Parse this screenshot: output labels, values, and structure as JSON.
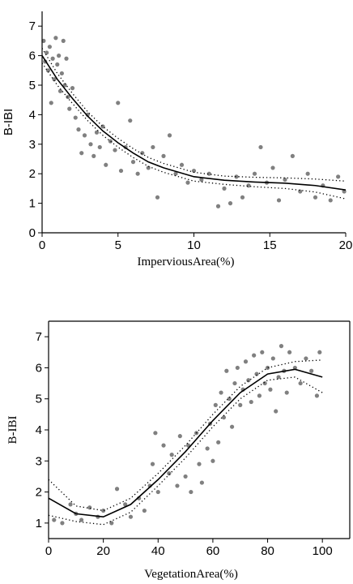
{
  "chart_data": [
    {
      "type": "scatter",
      "xlabel": "ImperviousArea(%)",
      "ylabel": "B-IBI",
      "xlim": [
        0,
        20
      ],
      "ylim": [
        0,
        7.5
      ],
      "xticks": [
        0,
        5,
        10,
        15,
        20
      ],
      "yticks": [
        0,
        1,
        2,
        3,
        4,
        5,
        6,
        7
      ],
      "frame": false,
      "series": [
        {
          "mode": "points",
          "color": "#808080",
          "x": [
            0.1,
            0.2,
            0.3,
            0.4,
            0.5,
            0.6,
            0.7,
            0.8,
            0.9,
            1.0,
            1.1,
            1.2,
            1.3,
            1.4,
            1.5,
            1.6,
            1.7,
            1.8,
            2.0,
            2.2,
            2.4,
            2.6,
            2.8,
            3.0,
            3.2,
            3.4,
            3.6,
            3.8,
            4.0,
            4.2,
            4.5,
            4.8,
            5.0,
            5.2,
            5.5,
            5.8,
            6.0,
            6.3,
            6.6,
            7.0,
            7.3,
            7.6,
            8.0,
            8.4,
            8.8,
            9.2,
            9.6,
            10.0,
            10.5,
            11.0,
            11.6,
            12.0,
            12.4,
            12.8,
            13.2,
            13.6,
            14.0,
            14.4,
            14.8,
            15.2,
            15.6,
            16.0,
            16.5,
            17.0,
            17.5,
            18.0,
            18.5,
            19.0,
            19.5,
            19.9
          ],
          "values": [
            6.5,
            5.8,
            6.1,
            5.5,
            6.3,
            4.4,
            5.9,
            5.2,
            6.6,
            5.7,
            6.0,
            4.8,
            5.4,
            6.5,
            5.0,
            5.9,
            4.6,
            4.2,
            4.9,
            3.9,
            3.5,
            2.7,
            3.3,
            4.0,
            3.0,
            2.6,
            3.4,
            2.9,
            3.6,
            2.3,
            3.1,
            2.8,
            4.4,
            2.1,
            2.9,
            3.8,
            2.4,
            2.0,
            2.7,
            2.2,
            2.9,
            1.2,
            2.6,
            3.3,
            2.0,
            2.3,
            1.7,
            2.1,
            1.8,
            2.0,
            0.9,
            1.5,
            1.0,
            1.9,
            1.2,
            1.6,
            2.0,
            2.9,
            1.7,
            2.2,
            1.1,
            1.8,
            2.6,
            1.4,
            2.0,
            1.2,
            1.6,
            1.1,
            1.9,
            1.4
          ]
        },
        {
          "mode": "line",
          "color": "#000000",
          "dash": "solid",
          "x": [
            0,
            1,
            2,
            3,
            4,
            5,
            6,
            7,
            8,
            10,
            12,
            14,
            16,
            18,
            20
          ],
          "values": [
            6.0,
            5.2,
            4.55,
            3.95,
            3.45,
            3.05,
            2.7,
            2.4,
            2.2,
            1.9,
            1.78,
            1.72,
            1.68,
            1.6,
            1.45
          ]
        },
        {
          "mode": "line",
          "color": "#000000",
          "dash": "dotted",
          "x": [
            0,
            1,
            2,
            3,
            4,
            5,
            6,
            7,
            8,
            10,
            12,
            14,
            16,
            18,
            20
          ],
          "values": [
            6.25,
            5.4,
            4.72,
            4.1,
            3.6,
            3.2,
            2.85,
            2.55,
            2.35,
            2.05,
            1.92,
            1.88,
            1.86,
            1.82,
            1.75
          ]
        },
        {
          "mode": "line",
          "color": "#000000",
          "dash": "dotted",
          "x": [
            0,
            1,
            2,
            3,
            4,
            5,
            6,
            7,
            8,
            10,
            12,
            14,
            16,
            18,
            20
          ],
          "values": [
            5.75,
            5.0,
            4.38,
            3.8,
            3.3,
            2.9,
            2.55,
            2.25,
            2.05,
            1.75,
            1.64,
            1.56,
            1.5,
            1.38,
            1.15
          ]
        }
      ]
    },
    {
      "type": "scatter",
      "xlabel": "VegetationArea(%)",
      "ylabel": "B-IBI",
      "xlim": [
        0,
        110
      ],
      "ylim": [
        0.5,
        7.5
      ],
      "xticks": [
        0,
        20,
        40,
        60,
        80,
        100
      ],
      "yticks": [
        1,
        2,
        3,
        4,
        5,
        6,
        7
      ],
      "frame": true,
      "series": [
        {
          "mode": "points",
          "color": "#808080",
          "x": [
            2,
            5,
            8,
            10,
            12,
            15,
            18,
            20,
            23,
            25,
            28,
            30,
            33,
            35,
            37,
            38,
            39,
            40,
            42,
            44,
            45,
            47,
            48,
            50,
            51,
            52,
            54,
            55,
            56,
            58,
            59,
            60,
            61,
            62,
            63,
            64,
            65,
            66,
            67,
            68,
            69,
            70,
            71,
            72,
            73,
            74,
            75,
            76,
            77,
            78,
            79,
            80,
            81,
            82,
            83,
            84,
            85,
            86,
            87,
            88,
            90,
            92,
            94,
            96,
            98,
            99
          ],
          "values": [
            1.1,
            1.0,
            1.6,
            1.3,
            1.1,
            1.5,
            1.2,
            1.4,
            1.0,
            2.1,
            1.6,
            1.2,
            1.8,
            1.4,
            2.2,
            2.9,
            3.9,
            2.0,
            3.5,
            2.6,
            3.2,
            2.2,
            3.8,
            2.5,
            3.5,
            2.0,
            3.9,
            2.9,
            2.3,
            3.4,
            4.2,
            3.0,
            4.8,
            3.6,
            5.2,
            4.4,
            5.9,
            5.0,
            4.1,
            5.5,
            6.0,
            4.8,
            5.3,
            6.2,
            5.6,
            4.9,
            6.4,
            5.8,
            5.1,
            6.5,
            5.5,
            6.0,
            5.3,
            6.3,
            4.6,
            5.7,
            6.7,
            5.9,
            5.2,
            6.5,
            6.0,
            5.5,
            6.3,
            5.9,
            5.1,
            6.5
          ]
        },
        {
          "mode": "line",
          "color": "#000000",
          "dash": "solid",
          "x": [
            0,
            10,
            20,
            30,
            40,
            50,
            60,
            70,
            80,
            90,
            100
          ],
          "values": [
            1.8,
            1.3,
            1.2,
            1.6,
            2.4,
            3.3,
            4.3,
            5.2,
            5.8,
            5.95,
            5.7
          ]
        },
        {
          "mode": "line",
          "color": "#000000",
          "dash": "dotted",
          "x": [
            0,
            10,
            20,
            30,
            40,
            50,
            60,
            70,
            80,
            90,
            100
          ],
          "values": [
            2.4,
            1.55,
            1.4,
            1.8,
            2.6,
            3.5,
            4.5,
            5.4,
            6.0,
            6.2,
            6.25
          ]
        },
        {
          "mode": "line",
          "color": "#000000",
          "dash": "dotted",
          "x": [
            0,
            10,
            20,
            30,
            40,
            50,
            60,
            70,
            80,
            90,
            100
          ],
          "values": [
            1.25,
            1.05,
            0.95,
            1.35,
            2.2,
            3.1,
            4.1,
            5.0,
            5.6,
            5.7,
            5.2
          ]
        }
      ]
    }
  ]
}
